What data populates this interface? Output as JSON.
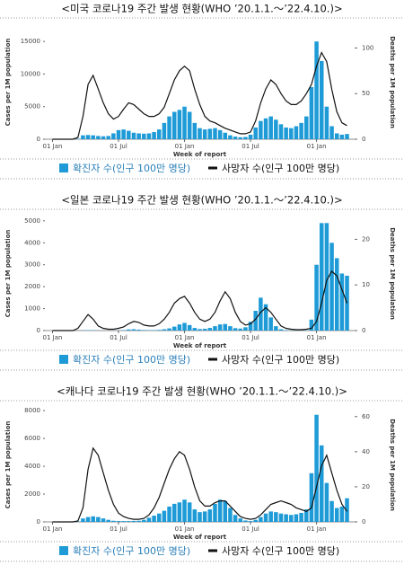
{
  "chart_data": [
    {
      "type": "combo",
      "title": "<미국 코로나19 주간 발생 현황(WHO ’20.1.1.～’22.4.10.)>",
      "x_label": "Week of report",
      "y_label": "Cases per 1M population",
      "y2_label": "Deaths per 1M population",
      "x": [
        0,
        2,
        4,
        6,
        8,
        10,
        12,
        14,
        16,
        18,
        20,
        22,
        24,
        26,
        28,
        30,
        32,
        34,
        36,
        38,
        40,
        42,
        44,
        46,
        48,
        50,
        52,
        54,
        56,
        58,
        60,
        62,
        64,
        66,
        68,
        70,
        72,
        74,
        76,
        78,
        80,
        82,
        84,
        86,
        88,
        90,
        92,
        94,
        96,
        98,
        100,
        102,
        104,
        106,
        108,
        110,
        112,
        114,
        116
      ],
      "xlim": [
        -3,
        119
      ],
      "xticks": [
        {
          "value": 0,
          "label": "01 Jan"
        },
        {
          "value": 26,
          "label": "01 Jul"
        },
        {
          "value": 52,
          "label": "01 Jan"
        },
        {
          "value": 78,
          "label": "01 Jul"
        },
        {
          "value": 104,
          "label": "01 Jan"
        }
      ],
      "ylim": [
        0,
        17500
      ],
      "yticks": [
        0,
        5000,
        10000,
        15000
      ],
      "y2lim": [
        0,
        125
      ],
      "y2ticks": [
        0,
        50,
        100
      ],
      "series": [
        {
          "name": "확진자 수(인구 100만 명당)",
          "type": "bar",
          "color": "#1e9bd7",
          "values": [
            0,
            0,
            0,
            0,
            2,
            80,
            600,
            650,
            600,
            500,
            450,
            500,
            900,
            1400,
            1500,
            1300,
            1000,
            900,
            850,
            900,
            1100,
            1500,
            2500,
            3500,
            4200,
            4500,
            5000,
            4200,
            2500,
            1700,
            1500,
            1600,
            1700,
            1400,
            1000,
            600,
            400,
            300,
            350,
            700,
            1800,
            2800,
            3200,
            3500,
            3000,
            2300,
            1800,
            1700,
            2000,
            2500,
            3500,
            8000,
            15000,
            12000,
            5000,
            2000,
            900,
            700,
            800
          ]
        },
        {
          "name": "사망자 수(인구 100만 명당)",
          "type": "line",
          "axis": "y2",
          "color": "#111111",
          "values": [
            0,
            0,
            0,
            0,
            0,
            2,
            25,
            60,
            70,
            55,
            40,
            28,
            22,
            25,
            33,
            40,
            38,
            33,
            28,
            25,
            25,
            28,
            35,
            50,
            65,
            75,
            80,
            75,
            55,
            38,
            25,
            20,
            18,
            15,
            12,
            10,
            8,
            6,
            6,
            8,
            20,
            40,
            55,
            65,
            60,
            50,
            42,
            38,
            38,
            42,
            50,
            60,
            80,
            95,
            85,
            55,
            30,
            18,
            15
          ]
        }
      ]
    },
    {
      "type": "combo",
      "title": "<일본 코로나19 주간 발생 현황(WHO ’20.1.1.～’22.4.10.)>",
      "x_label": "Week of report",
      "y_label": "Cases per 1M population",
      "y2_label": "Deaths per 1M population",
      "x": [
        0,
        2,
        4,
        6,
        8,
        10,
        12,
        14,
        16,
        18,
        20,
        22,
        24,
        26,
        28,
        30,
        32,
        34,
        36,
        38,
        40,
        42,
        44,
        46,
        48,
        50,
        52,
        54,
        56,
        58,
        60,
        62,
        64,
        66,
        68,
        70,
        72,
        74,
        76,
        78,
        80,
        82,
        84,
        86,
        88,
        90,
        92,
        94,
        96,
        98,
        100,
        102,
        104,
        106,
        108,
        110,
        112,
        114,
        116
      ],
      "xlim": [
        -3,
        119
      ],
      "xticks": [
        {
          "value": 0,
          "label": "01 Jan"
        },
        {
          "value": 26,
          "label": "01 Jul"
        },
        {
          "value": 52,
          "label": "01 Jan"
        },
        {
          "value": 78,
          "label": "01 Jul"
        },
        {
          "value": 104,
          "label": "01 Jan"
        }
      ],
      "ylim": [
        0,
        5200
      ],
      "yticks": [
        0,
        1000,
        2000,
        3000,
        4000,
        5000
      ],
      "y2lim": [
        0,
        25
      ],
      "y2ticks": [
        0,
        10,
        20
      ],
      "series": [
        {
          "name": "확진자 수(인구 100만 명당)",
          "type": "bar",
          "color": "#1e9bd7",
          "values": [
            0,
            0,
            0,
            0,
            0,
            2,
            8,
            20,
            15,
            5,
            2,
            1,
            2,
            5,
            20,
            50,
            60,
            40,
            25,
            20,
            20,
            30,
            60,
            100,
            180,
            280,
            350,
            250,
            120,
            70,
            80,
            120,
            200,
            280,
            300,
            200,
            110,
            90,
            150,
            400,
            900,
            1500,
            1200,
            600,
            200,
            60,
            20,
            10,
            8,
            10,
            15,
            500,
            3000,
            4900,
            4900,
            4000,
            3300,
            2600,
            2500
          ]
        },
        {
          "name": "사망자 수(인구 100만 명당)",
          "type": "line",
          "axis": "y2",
          "color": "#111111",
          "values": [
            0,
            0,
            0,
            0,
            0,
            0.5,
            2,
            3.5,
            2.5,
            1,
            0.5,
            0.3,
            0.3,
            0.5,
            0.8,
            1.5,
            2,
            1.8,
            1.2,
            1,
            1,
            1.5,
            2.5,
            4,
            6,
            7,
            7.5,
            6,
            4,
            2.5,
            2,
            2.5,
            4,
            6.5,
            8.5,
            7,
            4,
            2,
            1.2,
            1.5,
            2.5,
            4,
            5,
            4,
            2.5,
            1,
            0.5,
            0.3,
            0.2,
            0.2,
            0.3,
            0.5,
            2,
            6,
            11,
            13,
            12,
            9,
            6
          ]
        }
      ]
    },
    {
      "type": "combo",
      "title": "<캐나다 코로나19 주간 발생 현황(WHO ’20.1.1.～’22.4.10.)>",
      "x_label": "Week of report",
      "y_label": "Cases per 1M population",
      "y2_label": "Deaths per 1M population",
      "x": [
        0,
        2,
        4,
        6,
        8,
        10,
        12,
        14,
        16,
        18,
        20,
        22,
        24,
        26,
        28,
        30,
        32,
        34,
        36,
        38,
        40,
        42,
        44,
        46,
        48,
        50,
        52,
        54,
        56,
        58,
        60,
        62,
        64,
        66,
        68,
        70,
        72,
        74,
        76,
        78,
        80,
        82,
        84,
        86,
        88,
        90,
        92,
        94,
        96,
        98,
        100,
        102,
        104,
        106,
        108,
        110,
        112,
        114,
        116
      ],
      "xlim": [
        -3,
        119
      ],
      "xticks": [
        {
          "value": 0,
          "label": "01 Jan"
        },
        {
          "value": 26,
          "label": "01 Jul"
        },
        {
          "value": 52,
          "label": "01 Jan"
        },
        {
          "value": 78,
          "label": "01 Jul"
        },
        {
          "value": 104,
          "label": "01 Jan"
        }
      ],
      "ylim": [
        0,
        8200
      ],
      "yticks": [
        0,
        2000,
        4000,
        6000,
        8000
      ],
      "y2lim": [
        0,
        65
      ],
      "y2ticks": [
        0,
        20,
        40,
        60
      ],
      "series": [
        {
          "name": "확진자 수(인구 100만 명당)",
          "type": "bar",
          "color": "#1e9bd7",
          "values": [
            0,
            0,
            0,
            0,
            0,
            30,
            250,
            350,
            400,
            350,
            250,
            150,
            80,
            60,
            60,
            60,
            70,
            80,
            150,
            300,
            450,
            600,
            800,
            1100,
            1300,
            1400,
            1600,
            1400,
            900,
            700,
            750,
            900,
            1300,
            1600,
            1500,
            1000,
            500,
            250,
            100,
            60,
            150,
            350,
            600,
            750,
            700,
            600,
            550,
            500,
            550,
            650,
            900,
            3500,
            7700,
            5500,
            2800,
            1500,
            1000,
            1100,
            1700
          ]
        },
        {
          "name": "사망자 수(인구 100만 명당)",
          "type": "line",
          "axis": "y2",
          "color": "#111111",
          "values": [
            0,
            0,
            0,
            0,
            0,
            0.5,
            8,
            30,
            42,
            38,
            28,
            18,
            10,
            5,
            3,
            2,
            1.5,
            1.5,
            2,
            4,
            8,
            14,
            22,
            30,
            36,
            40,
            38,
            30,
            20,
            12,
            9,
            9,
            11,
            12,
            12,
            9,
            6,
            3,
            2,
            1.5,
            2,
            4,
            7,
            10,
            11,
            12,
            11,
            10,
            8,
            7,
            6,
            8,
            20,
            32,
            38,
            28,
            18,
            10,
            6
          ]
        }
      ]
    }
  ]
}
